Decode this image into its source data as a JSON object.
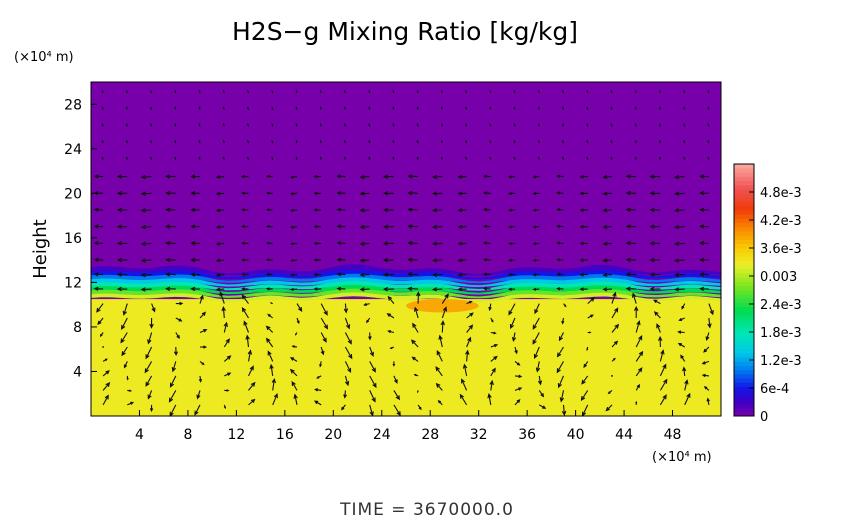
{
  "chart_data": {
    "type": "heatmap",
    "title": "H2S−g Mixing Ratio [kg/kg]",
    "ylabel": "Height",
    "y_unit": "(×10⁴ m)",
    "x_unit": "(×10⁴ m)",
    "x_ticks": [
      "4",
      "8",
      "12",
      "16",
      "20",
      "24",
      "28",
      "32",
      "36",
      "40",
      "44",
      "48"
    ],
    "x_tick_values": [
      4,
      8,
      12,
      16,
      20,
      24,
      28,
      32,
      36,
      40,
      44,
      48
    ],
    "y_ticks": [
      "4",
      "8",
      "12",
      "16",
      "20",
      "24",
      "28"
    ],
    "y_tick_values": [
      4,
      8,
      12,
      16,
      20,
      24,
      28
    ],
    "xlim": [
      0,
      52
    ],
    "ylim": [
      0,
      30
    ],
    "colorbar": {
      "labels": [
        "0",
        "6e-4",
        "1.2e-3",
        "1.8e-3",
        "2.4e-3",
        "0.003",
        "3.6e-3",
        "4.2e-3",
        "4.8e-3"
      ],
      "values": [
        0,
        0.0006,
        0.0012,
        0.0018,
        0.0024,
        0.003,
        0.0036,
        0.0042,
        0.0048
      ],
      "range": [
        0,
        0.0054
      ]
    },
    "field": {
      "lower_layer_top_height": 10.5,
      "lower_layer_value": 0.0033,
      "transition_top_height": 13.2,
      "upper_layer_value": 0.0,
      "max_patch": {
        "x": [
          26,
          32
        ],
        "y": [
          9.3,
          10.5
        ],
        "value": 0.0039
      }
    },
    "vectors": "wind arrows"
  },
  "footer": {
    "time_label": "TIME = 3670000.0"
  }
}
